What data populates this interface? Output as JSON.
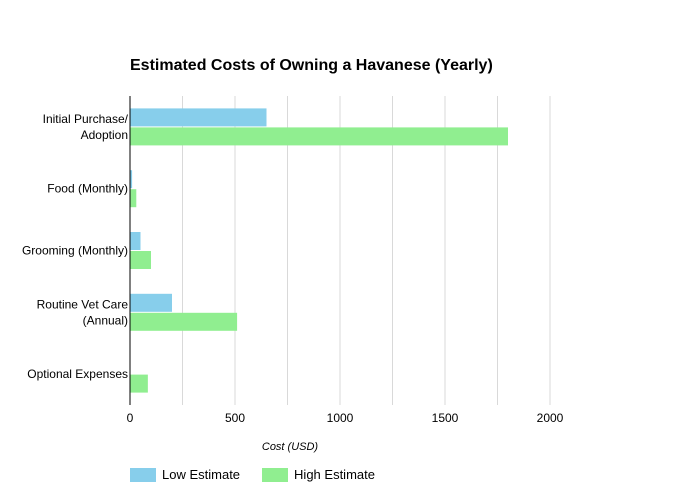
{
  "chart_data": {
    "type": "bar",
    "orientation": "horizontal",
    "title": "Estimated Costs of Owning a Havanese (Yearly)",
    "xlabel": "Cost (USD)",
    "ylabel": "",
    "xlim": [
      0,
      2000
    ],
    "x_ticks": [
      0,
      500,
      1000,
      1500,
      2000
    ],
    "grid": true,
    "legend_position": "bottom-left",
    "categories": [
      [
        "Initial Purchase/",
        "Adoption"
      ],
      [
        "Food (Monthly)"
      ],
      [
        "Grooming (Monthly)"
      ],
      [
        "Routine Vet Care",
        "(Annual)"
      ],
      [
        "Optional Expenses"
      ]
    ],
    "series": [
      {
        "name": "Low Estimate",
        "color": "#87CEEB",
        "values": [
          650,
          10,
          50,
          200,
          0
        ]
      },
      {
        "name": "High Estimate",
        "color": "#90EE90",
        "values": [
          1800,
          30,
          100,
          510,
          85
        ]
      }
    ]
  }
}
